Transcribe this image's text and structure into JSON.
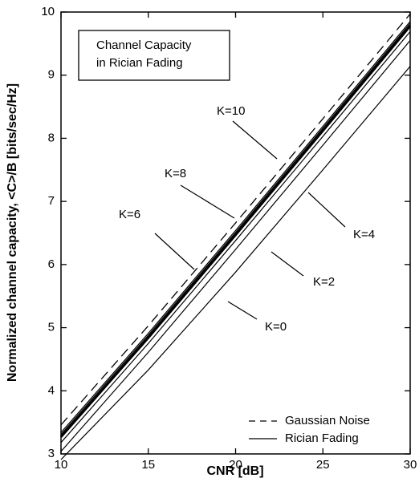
{
  "chart_data": {
    "type": "line",
    "title_lines": [
      "Channel Capacity",
      "in Rician Fading"
    ],
    "x_label": "CNR [dB]",
    "y_label": "Normalized channel capacity, <C>/B [bits/sec/Hz]",
    "x": [
      10,
      15,
      20,
      25,
      30
    ],
    "series": [
      {
        "name": "Gaussian Noise",
        "color": "#000000",
        "style": "dashed",
        "values": [
          3.46,
          5.03,
          6.66,
          8.31,
          9.97
        ]
      },
      {
        "name": "K=10",
        "color": "#000000",
        "style": "solid",
        "values": [
          3.34,
          4.91,
          6.54,
          8.19,
          9.85
        ]
      },
      {
        "name": "K=8",
        "color": "#000000",
        "style": "solid",
        "values": [
          3.31,
          4.88,
          6.51,
          8.16,
          9.82
        ]
      },
      {
        "name": "K=6",
        "color": "#000000",
        "style": "thick",
        "values": [
          3.27,
          4.84,
          6.47,
          8.12,
          9.78
        ]
      },
      {
        "name": "K=4",
        "color": "#000000",
        "style": "solid",
        "values": [
          3.18,
          4.75,
          6.38,
          8.03,
          9.69
        ]
      },
      {
        "name": "K=2",
        "color": "#000000",
        "style": "solid",
        "values": [
          3.04,
          4.61,
          6.24,
          7.89,
          9.55
        ]
      },
      {
        "name": "K=0",
        "color": "#000000",
        "style": "solid",
        "values": [
          2.91,
          4.33,
          5.88,
          7.5,
          9.14
        ]
      }
    ],
    "legend": [
      "Gaussian Noise",
      "Rician Fading"
    ],
    "xlim": [
      10,
      30
    ],
    "xticks": [
      10,
      15,
      20,
      25,
      30
    ],
    "ylim": [
      3,
      10
    ],
    "yticks": [
      3,
      4,
      5,
      6,
      7,
      8,
      9,
      10
    ]
  }
}
